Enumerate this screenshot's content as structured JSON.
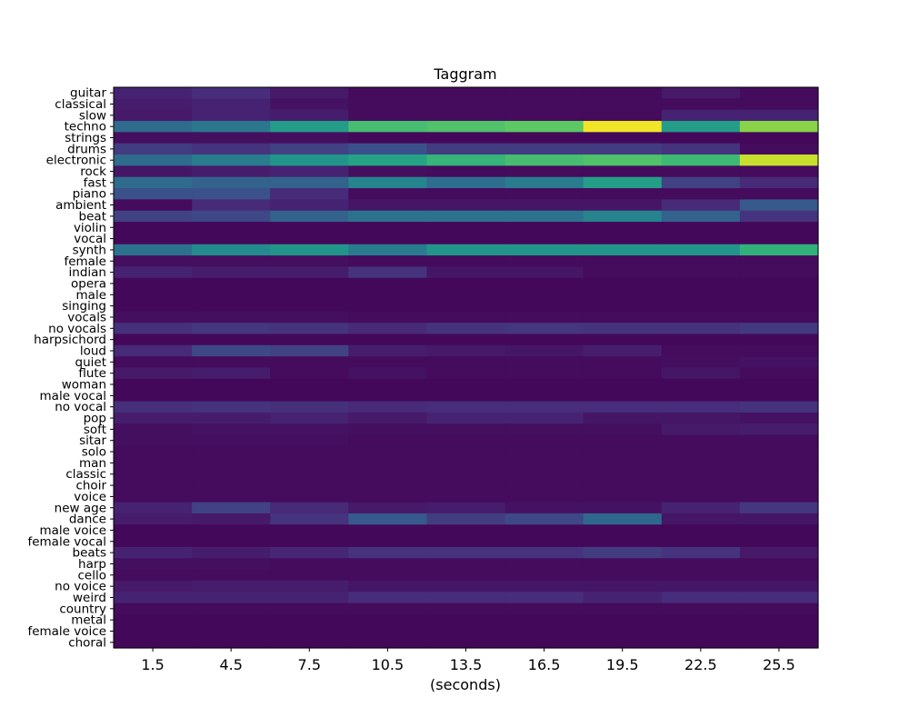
{
  "chart_data": {
    "type": "heatmap",
    "title": "Taggram",
    "xlabel": "(seconds)",
    "ylabel": "",
    "colormap": "viridis",
    "value_range": [
      0,
      1
    ],
    "x": [
      "1.5",
      "4.5",
      "7.5",
      "10.5",
      "13.5",
      "16.5",
      "19.5",
      "22.5",
      "25.5"
    ],
    "tags": [
      "guitar",
      "classical",
      "slow",
      "techno",
      "strings",
      "drums",
      "electronic",
      "rock",
      "fast",
      "piano",
      "ambient",
      "beat",
      "violin",
      "vocal",
      "synth",
      "female",
      "indian",
      "opera",
      "male",
      "singing",
      "vocals",
      "no vocals",
      "harpsichord",
      "loud",
      "quiet",
      "flute",
      "woman",
      "male vocal",
      "no vocal",
      "pop",
      "soft",
      "sitar",
      "solo",
      "man",
      "classic",
      "choir",
      "voice",
      "new age",
      "dance",
      "male voice",
      "female vocal",
      "beats",
      "harp",
      "cello",
      "no voice",
      "weird",
      "country",
      "metal",
      "female voice",
      "choral"
    ],
    "values": [
      [
        0.1,
        0.13,
        0.07,
        0.03,
        0.03,
        0.03,
        0.03,
        0.07,
        0.03
      ],
      [
        0.08,
        0.1,
        0.05,
        0.03,
        0.03,
        0.03,
        0.03,
        0.03,
        0.03
      ],
      [
        0.07,
        0.1,
        0.08,
        0.03,
        0.03,
        0.03,
        0.03,
        0.1,
        0.1
      ],
      [
        0.35,
        0.4,
        0.55,
        0.7,
        0.72,
        0.75,
        0.98,
        0.55,
        0.82
      ],
      [
        0.04,
        0.04,
        0.04,
        0.02,
        0.02,
        0.02,
        0.02,
        0.02,
        0.02
      ],
      [
        0.18,
        0.15,
        0.2,
        0.25,
        0.18,
        0.18,
        0.18,
        0.15,
        0.03
      ],
      [
        0.35,
        0.42,
        0.52,
        0.58,
        0.66,
        0.7,
        0.72,
        0.68,
        0.92
      ],
      [
        0.06,
        0.08,
        0.1,
        0.04,
        0.03,
        0.03,
        0.03,
        0.03,
        0.03
      ],
      [
        0.35,
        0.32,
        0.32,
        0.45,
        0.36,
        0.42,
        0.56,
        0.2,
        0.12
      ],
      [
        0.25,
        0.25,
        0.12,
        0.03,
        0.03,
        0.03,
        0.03,
        0.03,
        0.03
      ],
      [
        0.03,
        0.12,
        0.1,
        0.06,
        0.06,
        0.06,
        0.06,
        0.12,
        0.28
      ],
      [
        0.2,
        0.22,
        0.32,
        0.38,
        0.38,
        0.38,
        0.45,
        0.32,
        0.15
      ],
      [
        0.02,
        0.02,
        0.02,
        0.02,
        0.02,
        0.02,
        0.02,
        0.02,
        0.02
      ],
      [
        0.02,
        0.02,
        0.02,
        0.02,
        0.02,
        0.02,
        0.02,
        0.02,
        0.02
      ],
      [
        0.38,
        0.48,
        0.52,
        0.42,
        0.52,
        0.52,
        0.52,
        0.52,
        0.65
      ],
      [
        0.04,
        0.04,
        0.04,
        0.03,
        0.03,
        0.03,
        0.03,
        0.03,
        0.03
      ],
      [
        0.1,
        0.08,
        0.08,
        0.15,
        0.06,
        0.06,
        0.03,
        0.03,
        0.03
      ],
      [
        0.02,
        0.02,
        0.02,
        0.02,
        0.02,
        0.02,
        0.02,
        0.02,
        0.02
      ],
      [
        0.02,
        0.02,
        0.02,
        0.02,
        0.02,
        0.02,
        0.02,
        0.02,
        0.02
      ],
      [
        0.02,
        0.02,
        0.02,
        0.02,
        0.02,
        0.02,
        0.02,
        0.02,
        0.02
      ],
      [
        0.04,
        0.04,
        0.04,
        0.03,
        0.03,
        0.03,
        0.03,
        0.03,
        0.03
      ],
      [
        0.14,
        0.16,
        0.15,
        0.12,
        0.15,
        0.16,
        0.15,
        0.15,
        0.17
      ],
      [
        0.02,
        0.02,
        0.02,
        0.02,
        0.02,
        0.02,
        0.02,
        0.02,
        0.02
      ],
      [
        0.12,
        0.22,
        0.2,
        0.08,
        0.07,
        0.06,
        0.08,
        0.03,
        0.03
      ],
      [
        0.03,
        0.03,
        0.03,
        0.03,
        0.03,
        0.03,
        0.03,
        0.04,
        0.05
      ],
      [
        0.07,
        0.08,
        0.03,
        0.05,
        0.03,
        0.03,
        0.03,
        0.06,
        0.03
      ],
      [
        0.02,
        0.02,
        0.02,
        0.02,
        0.02,
        0.02,
        0.02,
        0.02,
        0.02
      ],
      [
        0.02,
        0.02,
        0.02,
        0.02,
        0.02,
        0.02,
        0.02,
        0.02,
        0.02
      ],
      [
        0.14,
        0.15,
        0.14,
        0.12,
        0.13,
        0.13,
        0.13,
        0.13,
        0.15
      ],
      [
        0.08,
        0.08,
        0.1,
        0.07,
        0.1,
        0.1,
        0.06,
        0.06,
        0.05
      ],
      [
        0.04,
        0.05,
        0.05,
        0.04,
        0.04,
        0.04,
        0.04,
        0.07,
        0.08
      ],
      [
        0.04,
        0.04,
        0.04,
        0.03,
        0.03,
        0.03,
        0.03,
        0.03,
        0.03
      ],
      [
        0.03,
        0.03,
        0.03,
        0.03,
        0.03,
        0.03,
        0.03,
        0.03,
        0.03
      ],
      [
        0.03,
        0.03,
        0.03,
        0.03,
        0.03,
        0.03,
        0.03,
        0.03,
        0.03
      ],
      [
        0.03,
        0.03,
        0.03,
        0.03,
        0.03,
        0.03,
        0.03,
        0.03,
        0.03
      ],
      [
        0.03,
        0.03,
        0.03,
        0.03,
        0.03,
        0.03,
        0.03,
        0.03,
        0.03
      ],
      [
        0.03,
        0.03,
        0.03,
        0.03,
        0.03,
        0.03,
        0.03,
        0.03,
        0.03
      ],
      [
        0.1,
        0.2,
        0.12,
        0.07,
        0.08,
        0.05,
        0.05,
        0.1,
        0.16
      ],
      [
        0.08,
        0.07,
        0.15,
        0.28,
        0.18,
        0.22,
        0.34,
        0.06,
        0.06
      ],
      [
        0.02,
        0.02,
        0.02,
        0.02,
        0.02,
        0.02,
        0.02,
        0.02,
        0.02
      ],
      [
        0.02,
        0.02,
        0.02,
        0.02,
        0.02,
        0.02,
        0.02,
        0.02,
        0.02
      ],
      [
        0.1,
        0.08,
        0.11,
        0.15,
        0.15,
        0.15,
        0.18,
        0.15,
        0.07
      ],
      [
        0.04,
        0.04,
        0.03,
        0.03,
        0.03,
        0.03,
        0.03,
        0.03,
        0.03
      ],
      [
        0.03,
        0.03,
        0.03,
        0.03,
        0.03,
        0.03,
        0.03,
        0.03,
        0.03
      ],
      [
        0.07,
        0.08,
        0.08,
        0.06,
        0.06,
        0.06,
        0.06,
        0.06,
        0.06
      ],
      [
        0.1,
        0.1,
        0.1,
        0.13,
        0.13,
        0.13,
        0.1,
        0.13,
        0.13
      ],
      [
        0.03,
        0.03,
        0.03,
        0.03,
        0.03,
        0.03,
        0.03,
        0.03,
        0.03
      ],
      [
        0.02,
        0.02,
        0.02,
        0.02,
        0.02,
        0.02,
        0.02,
        0.02,
        0.02
      ],
      [
        0.02,
        0.02,
        0.02,
        0.02,
        0.02,
        0.02,
        0.02,
        0.02,
        0.02
      ],
      [
        0.02,
        0.02,
        0.02,
        0.02,
        0.02,
        0.02,
        0.02,
        0.02,
        0.02
      ]
    ]
  }
}
